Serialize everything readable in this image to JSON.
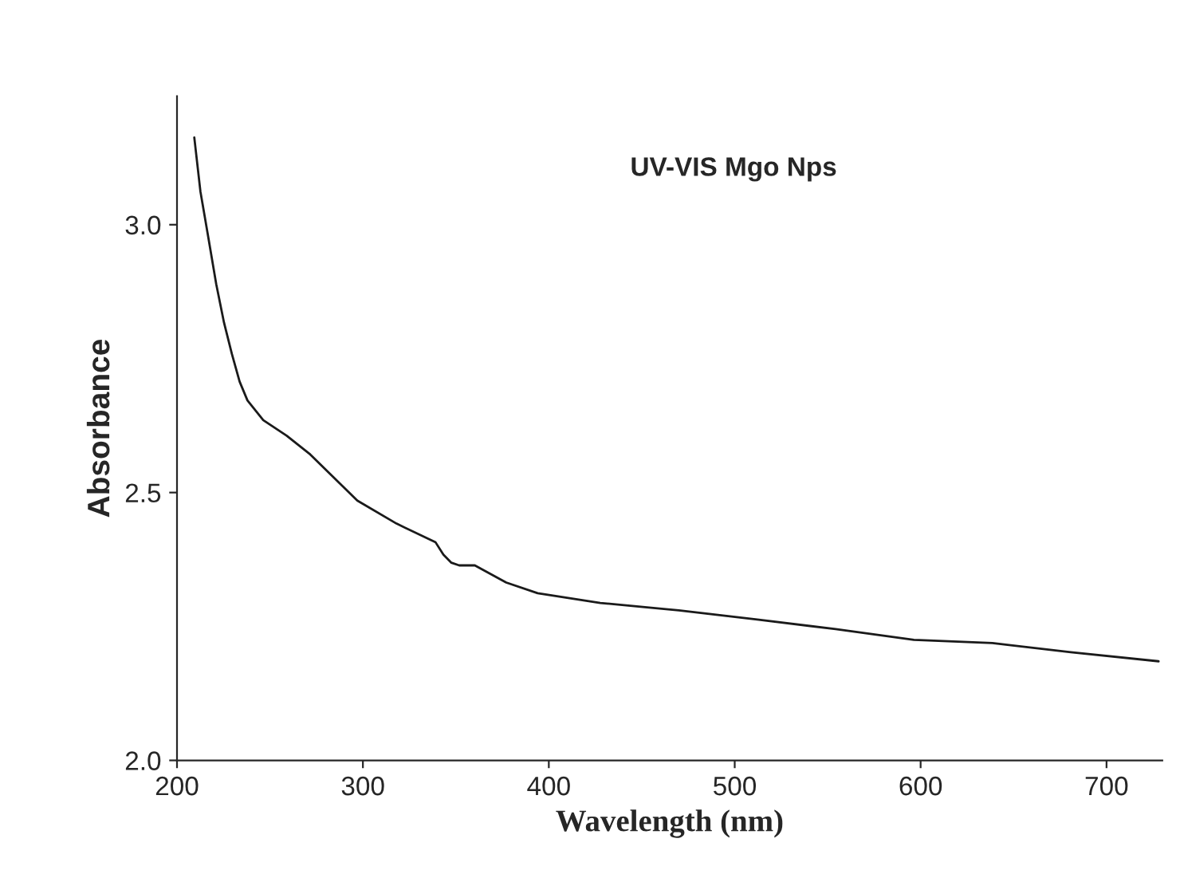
{
  "chart_data": {
    "type": "line",
    "xlabel": "Wavelength (nm)",
    "ylabel": "Absorbance",
    "annotations": [
      "UV-VIS Mgo Nps"
    ],
    "series": [
      {
        "color": "#1a1a1a",
        "x": [
          209.3,
          212.6,
          216.9,
          221.1,
          225.3,
          229.5,
          233.7,
          237.9,
          246.4,
          259.0,
          271.7,
          284.3,
          297.0,
          318.1,
          339.1,
          343.3,
          347.6,
          351.8,
          360.2,
          377.1,
          394.0,
          427.7,
          469.9,
          512.1,
          554.3,
          596.4,
          638.6,
          680.8,
          728.0
        ],
        "values": [
          3.163,
          3.062,
          2.975,
          2.889,
          2.817,
          2.759,
          2.707,
          2.672,
          2.635,
          2.606,
          2.571,
          2.528,
          2.485,
          2.442,
          2.407,
          2.384,
          2.369,
          2.364,
          2.364,
          2.332,
          2.312,
          2.294,
          2.28,
          2.263,
          2.245,
          2.225,
          2.219,
          2.202,
          2.185
        ]
      }
    ],
    "xlim": [
      200,
      730
    ],
    "xticks": [
      200,
      300,
      400,
      500,
      600,
      700
    ],
    "ylim": [
      2.0,
      3.24
    ],
    "yticks": [
      {
        "value": 2.0,
        "label": "2.0"
      },
      {
        "value": 2.5,
        "label": "2.5"
      },
      {
        "value": 3.0,
        "label": "3.0"
      }
    ],
    "grid": false,
    "legend": false,
    "marker": "none",
    "line_style": "solid"
  }
}
